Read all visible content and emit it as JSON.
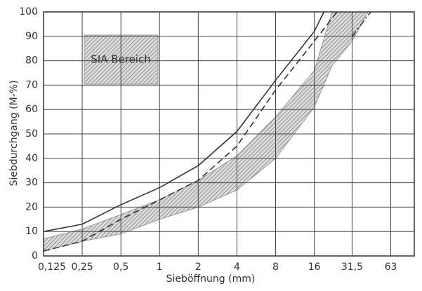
{
  "chart_data": {
    "type": "line",
    "xlabel": "Sieböffnung (mm)",
    "ylabel": "Siebdurchgang (M-%)",
    "xscale": "log",
    "xlim": [
      0.125,
      96
    ],
    "xticks": [
      {
        "value": 0.125,
        "label": "0,125"
      },
      {
        "value": 0.25,
        "label": "0,25"
      },
      {
        "value": 0.5,
        "label": "0,5"
      },
      1,
      2,
      4,
      8,
      16,
      {
        "value": 31.5,
        "label": "31,5"
      },
      63
    ],
    "ylim": [
      0,
      100
    ],
    "yticks": [
      0,
      10,
      20,
      30,
      40,
      50,
      60,
      70,
      80,
      90,
      100
    ],
    "grid": true,
    "series": [
      {
        "type": "line",
        "style": "solid",
        "color": "#333",
        "x": [
          0.125,
          0.25,
          0.5,
          1,
          2,
          4,
          8,
          16,
          19
        ],
        "values": [
          10,
          13,
          21,
          28,
          37,
          51,
          72,
          92,
          100
        ]
      },
      {
        "type": "line",
        "style": "dashed",
        "color": "#333",
        "x": [
          0.125,
          0.25,
          0.5,
          1,
          2,
          4,
          8,
          16,
          24
        ],
        "values": [
          2,
          6,
          15,
          23,
          31,
          45,
          68,
          88,
          100
        ]
      },
      {
        "type": "line",
        "style": "dashdot",
        "color": "#333",
        "x": [
          31.5,
          44
        ],
        "values": [
          90,
          100
        ]
      },
      {
        "type": "band",
        "name": "SIA Bereich",
        "color": "#999",
        "x": [
          0.125,
          0.25,
          0.5,
          1,
          2,
          4,
          8,
          16,
          22,
          31.5,
          42
        ],
        "upper": [
          7,
          11,
          17,
          23,
          31,
          41,
          57,
          76,
          100,
          100,
          100
        ],
        "lower": [
          2,
          6,
          9,
          15,
          20,
          27,
          40,
          61,
          78,
          88,
          100
        ]
      }
    ]
  }
}
